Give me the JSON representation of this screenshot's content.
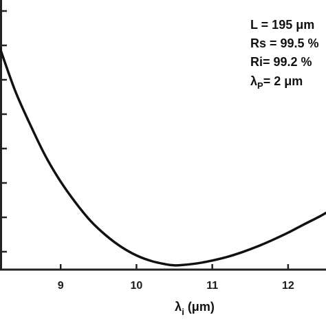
{
  "chart_data": {
    "type": "line",
    "xlabel": {
      "symbol": "λ",
      "subscript": "i",
      "unit": " (μm)"
    },
    "ylabel": "",
    "title": "",
    "xlim": [
      8.2,
      12.5
    ],
    "x_ticks": [
      9,
      10,
      11,
      12
    ],
    "x_tick_labels": [
      "9",
      "10",
      "11",
      "12"
    ],
    "y_tick_count": 8,
    "grid": false,
    "line_color": "#111111",
    "series": [
      {
        "x": [
          8.2,
          8.4,
          8.6,
          8.8,
          9.0,
          9.2,
          9.4,
          9.6,
          9.8,
          10.0,
          10.2,
          10.4,
          10.5,
          10.6,
          10.8,
          11.0,
          11.2,
          11.4,
          11.6,
          11.8,
          12.0,
          12.2,
          12.4,
          12.5
        ],
        "y": [
          0.78,
          0.63,
          0.51,
          0.4,
          0.31,
          0.235,
          0.17,
          0.12,
          0.08,
          0.05,
          0.03,
          0.018,
          0.015,
          0.016,
          0.022,
          0.032,
          0.045,
          0.062,
          0.082,
          0.105,
          0.13,
          0.158,
          0.185,
          0.2
        ]
      }
    ],
    "annotations": [
      {
        "text": "L = 195 μm"
      },
      {
        "text": "Rs = 99.5 %"
      },
      {
        "text": "Ri= 99.2 %"
      },
      {
        "symbol": "λ",
        "subscript": "P",
        "rest": "= 2 μm"
      }
    ]
  }
}
